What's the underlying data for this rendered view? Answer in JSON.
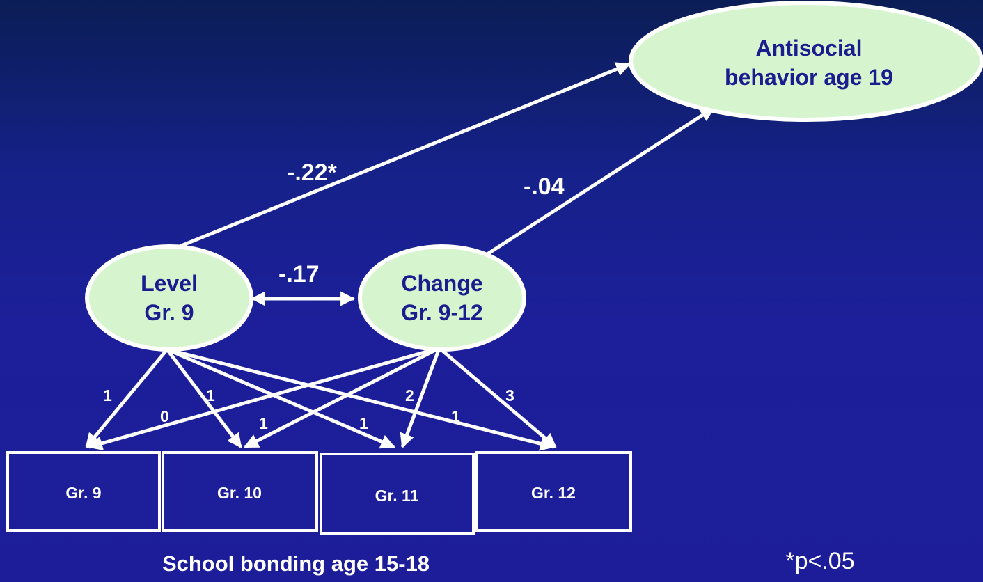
{
  "nodes": {
    "outcome": [
      "Antisocial",
      "behavior age 19"
    ],
    "level": [
      "Level",
      "Gr. 9"
    ],
    "change": [
      "Change",
      "Gr. 9-12"
    ]
  },
  "coefficients": {
    "level_to_outcome": "-.22*",
    "change_to_outcome": "-.04",
    "level_change_covariance": "-.17"
  },
  "loadings": {
    "level": [
      "1",
      "1",
      "1",
      "1"
    ],
    "change": [
      "0",
      "1",
      "2",
      "3"
    ]
  },
  "observed": [
    "Gr. 9",
    "Gr. 10",
    "Gr. 11",
    "Gr. 12"
  ],
  "caption": "School bonding age 15-18",
  "note": "*p<.05"
}
